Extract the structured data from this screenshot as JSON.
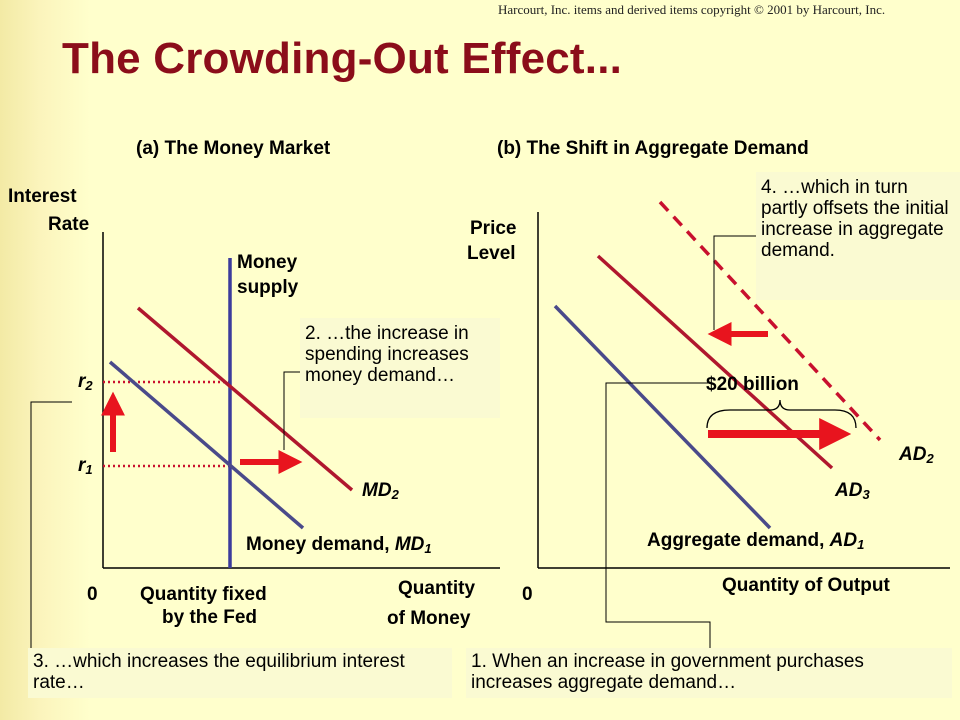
{
  "copyright": "Harcourt, Inc. items and derived items copyright © 2001 by Harcourt, Inc.",
  "title": "The Crowding-Out Effect...",
  "panel_a": {
    "title": "(a) The Money Market",
    "ylabel_1": "Interest",
    "ylabel_2": "Rate",
    "xlabel_1": "Quantity",
    "xlabel_2": "of Money",
    "origin": "0",
    "money_supply_1": "Money",
    "money_supply_2": "supply",
    "quantity_fixed_1": "Quantity fixed",
    "quantity_fixed_2": "by the Fed",
    "md2_main": "MD",
    "md2_sub": "2",
    "md1_main": "Money demand, ",
    "md1_italic": "MD",
    "md1_sub": "1",
    "r2_main": "r",
    "r2_sub": "2",
    "r1_main": "r",
    "r1_sub": "1",
    "note2": "2. …the increase in spending increases money demand…",
    "note3": "3. …which increases the equilibrium interest rate…"
  },
  "panel_b": {
    "title": "(b) The Shift in Aggregate Demand",
    "ylabel_1": "Price",
    "ylabel_2": "Level",
    "xlabel": "Quantity of Output",
    "origin": "0",
    "ad1_main": "Aggregate demand, ",
    "ad1_italic": "AD",
    "ad1_sub": "1",
    "ad2_main": "AD",
    "ad2_sub": "2",
    "ad3_main": "AD",
    "ad3_sub": "3",
    "shift_label": "$20 billion",
    "note1": "1. When an increase in government purchases increases aggregate demand…",
    "note4": "4. …which in turn partly offsets the initial increase in aggregate demand."
  },
  "colors": {
    "title": "#8b0d1a",
    "md1": "#4a4a8a",
    "md2": "#b0172e",
    "money_supply": "#3c3c9c",
    "arrow": "#e8141e",
    "ad1": "#4a4a8a",
    "ad3": "#b0172e",
    "ad2": "#c8102e",
    "dotted": "#c8102e"
  },
  "chart_data": [
    {
      "type": "line",
      "title": "(a) The Money Market",
      "xlabel": "Quantity of Money",
      "ylabel": "Interest Rate",
      "series": [
        {
          "name": "Money demand, MD1"
        },
        {
          "name": "MD2"
        },
        {
          "name": "Money supply"
        }
      ],
      "y_ticks": [
        "r1",
        "r2"
      ],
      "x_ticks": [
        "0",
        "Quantity fixed by the Fed"
      ]
    },
    {
      "type": "line",
      "title": "(b) The Shift in Aggregate Demand",
      "xlabel": "Quantity of Output",
      "ylabel": "Price Level",
      "series": [
        {
          "name": "Aggregate demand, AD1"
        },
        {
          "name": "AD2"
        },
        {
          "name": "AD3"
        }
      ],
      "annotations": [
        "$20 billion"
      ]
    }
  ]
}
